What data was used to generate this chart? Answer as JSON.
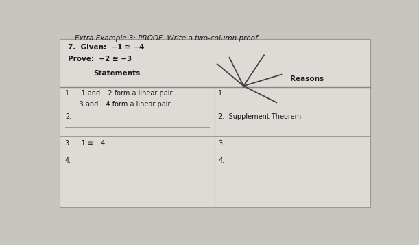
{
  "bg_color": "#c8c4c0",
  "box_bg": "#dedad6",
  "title_text": "Extra Example 3: PROOF  Write a two-column proof.",
  "title_fontsize": 7.5,
  "given_text": "7.  Given:  −1 ≅ −4",
  "prove_text": "Prove:  −2 ≅ −3",
  "statements_header": "Statements",
  "reasons_header": "Reasons",
  "row1_stmt": "1.  −1 and −2 form a linear pair",
  "row1_stmt2": "    −3 and −4 form a linear pair",
  "row2_rsn": "2.  Supplement Theorem",
  "row3_stmt": "3.  −1 ≅ −4",
  "header_line_color": "#888880",
  "text_color": "#1a1a1a",
  "line_color": "#999990",
  "box_outline": "#999990",
  "geometry_color": "#444444"
}
